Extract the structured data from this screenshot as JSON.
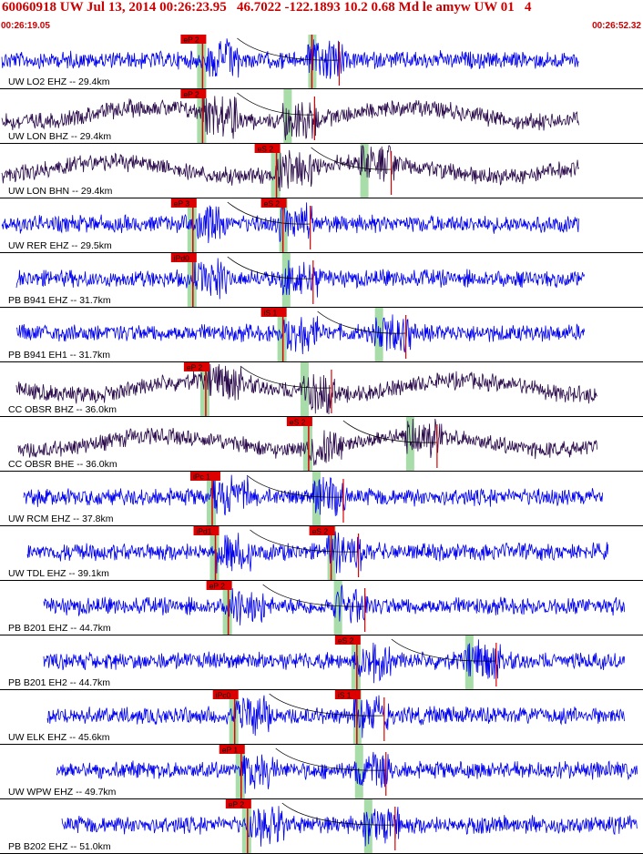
{
  "header": {
    "title": "60060918 UW Jul 13, 2014 00:26:23.95   46.7022 -122.1893 10.2 0.68 Md le amyw UW 01   4",
    "time_start": "00:26:19.05",
    "time_end": "00:26:52.32"
  },
  "colors": {
    "trace_blue": "#0000ee",
    "trace_purple": "#2a0a4a",
    "pick_red": "#dd0000",
    "pick_label_text": "#111111",
    "green_band": "#a8dca8",
    "divider": "#000000"
  },
  "traces": [
    {
      "label": "UW LO2 EHZ -- 29.4km",
      "color": "blue",
      "picks": [
        {
          "text": "eP 2",
          "t": 0.315
        },
        {
          "text": "",
          "t": 0.485
        }
      ]
    },
    {
      "label": "UW LON BHZ -- 29.4km",
      "color": "purple",
      "picks": [
        {
          "text": "eP 2",
          "t": 0.315
        }
      ]
    },
    {
      "label": "UW LON BHN -- 29.4km",
      "color": "purple",
      "picks": [
        {
          "text": "eS 2",
          "t": 0.43
        }
      ]
    },
    {
      "label": "UW RER EHZ -- 29.5km",
      "color": "blue",
      "picks": [
        {
          "text": "eP 3",
          "t": 0.3
        },
        {
          "text": "eS 2",
          "t": 0.44
        }
      ]
    },
    {
      "label": "PB B941 EHZ -- 31.7km",
      "color": "blue",
      "picks": [
        {
          "text": "iPd0",
          "t": 0.3
        }
      ]
    },
    {
      "label": "PB B941 EH1 -- 31.7km",
      "color": "blue",
      "picks": [
        {
          "text": "iS 1",
          "t": 0.44
        }
      ]
    },
    {
      "label": "CC OBSR BHZ -- 36.0km",
      "color": "purple",
      "picks": [
        {
          "text": "eP 2",
          "t": 0.32
        }
      ]
    },
    {
      "label": "CC OBSR BHE -- 36.0km",
      "color": "purple",
      "picks": [
        {
          "text": "eS 2",
          "t": 0.48
        }
      ]
    },
    {
      "label": "UW RCM EHZ -- 37.8km",
      "color": "blue",
      "picks": [
        {
          "text": "iPc 1",
          "t": 0.33
        }
      ]
    },
    {
      "label": "UW TDL EHZ -- 39.1km",
      "color": "blue",
      "picks": [
        {
          "text": "iPd1",
          "t": 0.335
        },
        {
          "text": "eS 2",
          "t": 0.515
        }
      ]
    },
    {
      "label": "PB B201 EHZ -- 44.7km",
      "color": "blue",
      "picks": [
        {
          "text": "eP 2",
          "t": 0.355
        }
      ]
    },
    {
      "label": "PB B201 EH2 -- 44.7km",
      "color": "blue",
      "picks": [
        {
          "text": "eS 2",
          "t": 0.555
        }
      ]
    },
    {
      "label": "UW ELK EHZ -- 45.6km",
      "color": "blue",
      "picks": [
        {
          "text": "iPc0",
          "t": 0.365
        },
        {
          "text": "iS 1",
          "t": 0.555
        }
      ]
    },
    {
      "label": "UW WPW EHZ -- 49.7km",
      "color": "blue",
      "picks": [
        {
          "text": "eP 1",
          "t": 0.375
        }
      ]
    },
    {
      "label": "PB B202 EHZ -- 51.0km",
      "color": "blue",
      "picks": [
        {
          "text": "eP 2",
          "t": 0.385
        }
      ]
    }
  ]
}
